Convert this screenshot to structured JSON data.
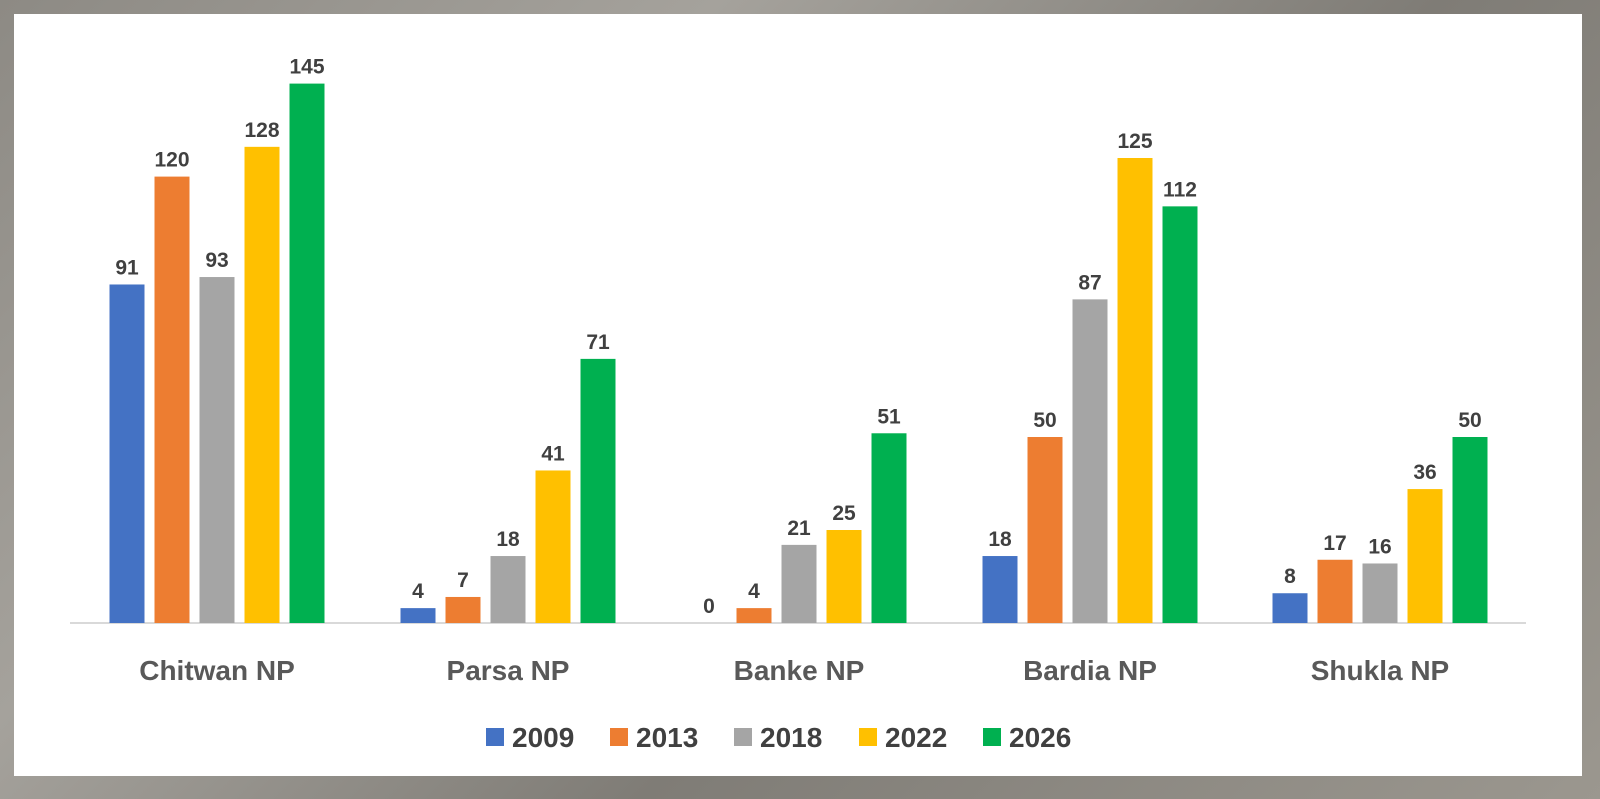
{
  "chart_data": {
    "type": "bar",
    "categories": [
      "Chitwan NP",
      "Parsa NP",
      "Banke NP",
      "Bardia NP",
      "Shukla NP"
    ],
    "series": [
      {
        "name": "2009",
        "color": "#4472C4",
        "values": [
          91,
          4,
          0,
          18,
          8
        ]
      },
      {
        "name": "2013",
        "color": "#ED7D31",
        "values": [
          120,
          7,
          4,
          50,
          17
        ]
      },
      {
        "name": "2018",
        "color": "#A5A5A5",
        "values": [
          93,
          18,
          21,
          87,
          16
        ]
      },
      {
        "name": "2022",
        "color": "#FFC000",
        "values": [
          128,
          41,
          25,
          125,
          36
        ]
      },
      {
        "name": "2026",
        "color": "#00B050",
        "values": [
          145,
          71,
          51,
          112,
          50
        ]
      }
    ],
    "title": "",
    "xlabel": "",
    "ylabel": "",
    "ylim": [
      0,
      150
    ],
    "grid": false,
    "legend_position": "bottom",
    "data_labels": true
  }
}
